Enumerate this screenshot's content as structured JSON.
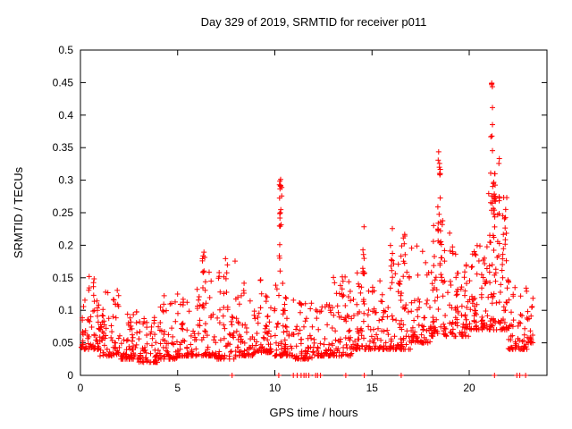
{
  "chart_data": {
    "type": "scatter",
    "title": "Day 329 of 2019, SRMTID for receiver p011",
    "xlabel": "GPS time / hours",
    "ylabel": "SRMTID / TECUs",
    "xlim": [
      0,
      24
    ],
    "ylim": [
      0,
      0.5
    ],
    "x_tick_labels": [
      "0",
      "5",
      "10",
      "15",
      "20"
    ],
    "x_tick_values": [
      0,
      5,
      10,
      15,
      20
    ],
    "y_tick_labels": [
      "0",
      "0.05",
      "0.1",
      "0.15",
      "0.2",
      "0.25",
      "0.3",
      "0.35",
      "0.4",
      "0.45",
      "0.5"
    ],
    "y_tick_values": [
      0,
      0.05,
      0.1,
      0.15,
      0.2,
      0.25,
      0.3,
      0.35,
      0.4,
      0.45,
      0.5
    ],
    "grid": false,
    "legend": "none",
    "marker": {
      "shape": "plus",
      "color": "#ff0000",
      "size": 7
    },
    "axis_color": "#000000",
    "background": "#ffffff",
    "hour_bands": [
      {
        "x0": 0.0,
        "x1": 1.0,
        "n": 72,
        "lo": 0.04,
        "hi": 0.155
      },
      {
        "x0": 1.0,
        "x1": 2.0,
        "n": 70,
        "lo": 0.03,
        "hi": 0.14
      },
      {
        "x0": 2.0,
        "x1": 3.0,
        "n": 62,
        "lo": 0.025,
        "hi": 0.1
      },
      {
        "x0": 3.0,
        "x1": 4.0,
        "n": 60,
        "lo": 0.02,
        "hi": 0.09
      },
      {
        "x0": 4.0,
        "x1": 5.0,
        "n": 62,
        "lo": 0.025,
        "hi": 0.125
      },
      {
        "x0": 5.0,
        "x1": 6.0,
        "n": 60,
        "lo": 0.03,
        "hi": 0.12
      },
      {
        "x0": 6.0,
        "x1": 7.0,
        "n": 62,
        "lo": 0.03,
        "hi": 0.16
      },
      {
        "x0": 7.0,
        "x1": 8.0,
        "n": 60,
        "lo": 0.025,
        "hi": 0.18
      },
      {
        "x0": 8.0,
        "x1": 9.0,
        "n": 62,
        "lo": 0.03,
        "hi": 0.145
      },
      {
        "x0": 9.0,
        "x1": 10.0,
        "n": 62,
        "lo": 0.035,
        "hi": 0.15
      },
      {
        "x0": 10.0,
        "x1": 11.0,
        "n": 64,
        "lo": 0.03,
        "hi": 0.15
      },
      {
        "x0": 11.0,
        "x1": 12.0,
        "n": 60,
        "lo": 0.025,
        "hi": 0.12
      },
      {
        "x0": 12.0,
        "x1": 13.0,
        "n": 60,
        "lo": 0.03,
        "hi": 0.13
      },
      {
        "x0": 13.0,
        "x1": 14.0,
        "n": 60,
        "lo": 0.03,
        "hi": 0.16
      },
      {
        "x0": 14.0,
        "x1": 15.0,
        "n": 62,
        "lo": 0.04,
        "hi": 0.16
      },
      {
        "x0": 15.0,
        "x1": 16.0,
        "n": 60,
        "lo": 0.04,
        "hi": 0.15
      },
      {
        "x0": 16.0,
        "x1": 17.0,
        "n": 64,
        "lo": 0.04,
        "hi": 0.2
      },
      {
        "x0": 17.0,
        "x1": 18.0,
        "n": 62,
        "lo": 0.05,
        "hi": 0.2
      },
      {
        "x0": 18.0,
        "x1": 19.0,
        "n": 66,
        "lo": 0.06,
        "hi": 0.24
      },
      {
        "x0": 19.0,
        "x1": 20.0,
        "n": 64,
        "lo": 0.06,
        "hi": 0.2
      },
      {
        "x0": 20.0,
        "x1": 21.0,
        "n": 70,
        "lo": 0.07,
        "hi": 0.2
      },
      {
        "x0": 21.0,
        "x1": 22.0,
        "n": 80,
        "lo": 0.07,
        "hi": 0.28
      },
      {
        "x0": 22.0,
        "x1": 23.0,
        "n": 60,
        "lo": 0.04,
        "hi": 0.14
      },
      {
        "x0": 23.0,
        "x1": 23.3,
        "n": 20,
        "lo": 0.05,
        "hi": 0.13
      }
    ],
    "spike_columns": [
      {
        "x": 6.35,
        "w": 0.15,
        "y0": 0.13,
        "y1": 0.195,
        "n": 8
      },
      {
        "x": 10.3,
        "w": 0.12,
        "y0": 0.23,
        "y1": 0.305,
        "n": 14
      },
      {
        "x": 10.25,
        "w": 0.1,
        "y0": 0.15,
        "y1": 0.23,
        "n": 6
      },
      {
        "x": 13.5,
        "w": 0.1,
        "y0": 0.12,
        "y1": 0.165,
        "n": 5
      },
      {
        "x": 14.55,
        "w": 0.1,
        "y0": 0.15,
        "y1": 0.23,
        "n": 6
      },
      {
        "x": 16.0,
        "w": 0.12,
        "y0": 0.14,
        "y1": 0.235,
        "n": 8
      },
      {
        "x": 16.65,
        "w": 0.12,
        "y0": 0.14,
        "y1": 0.22,
        "n": 8
      },
      {
        "x": 18.45,
        "w": 0.15,
        "y0": 0.2,
        "y1": 0.35,
        "n": 16
      },
      {
        "x": 18.55,
        "w": 0.12,
        "y0": 0.14,
        "y1": 0.25,
        "n": 8
      },
      {
        "x": 19.4,
        "w": 0.1,
        "y0": 0.12,
        "y1": 0.2,
        "n": 5
      },
      {
        "x": 21.15,
        "w": 0.12,
        "y0": 0.2,
        "y1": 0.45,
        "n": 14
      },
      {
        "x": 21.3,
        "w": 0.15,
        "y0": 0.15,
        "y1": 0.31,
        "n": 18
      },
      {
        "x": 21.5,
        "w": 0.12,
        "y0": 0.2,
        "y1": 0.36,
        "n": 8
      },
      {
        "x": 22.0,
        "w": 0.1,
        "y0": 0.1,
        "y1": 0.15,
        "n": 5
      }
    ],
    "zero_marks": [
      7.8,
      10.2,
      10.95,
      11.15,
      11.35,
      11.5,
      11.6,
      11.75,
      12.1,
      12.2,
      12.35,
      13.65,
      14.6,
      16.5,
      21.3,
      22.45,
      22.6,
      22.9
    ]
  }
}
